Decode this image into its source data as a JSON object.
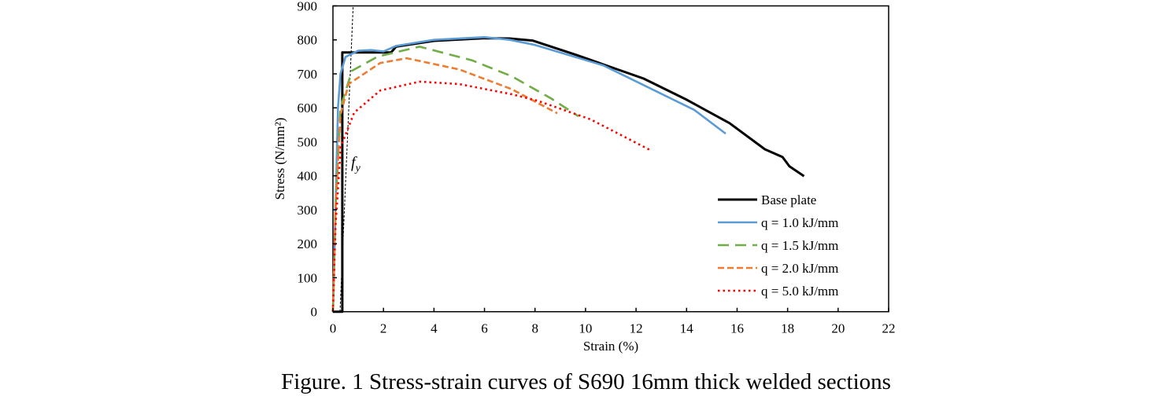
{
  "caption": "Figure. 1 Stress-strain curves of S690 16mm thick welded sections",
  "chart_data": {
    "type": "line",
    "title": "",
    "xlabel": "Strain (%)",
    "ylabel": "Stress (N/mm²)",
    "xlim": [
      0,
      22
    ],
    "ylim": [
      0,
      900
    ],
    "xticks": [
      0,
      2,
      4,
      6,
      8,
      10,
      12,
      14,
      16,
      18,
      20,
      22
    ],
    "yticks": [
      0,
      100,
      200,
      300,
      400,
      500,
      600,
      700,
      800,
      900
    ],
    "grid": false,
    "legend_position": "bottom-right",
    "annotation": {
      "label": "f",
      "subscript": "y",
      "x": 0.95,
      "y": 440
    },
    "reference_line": {
      "style": "dotted",
      "color": "#000000",
      "points": [
        [
          0.28,
          0
        ],
        [
          0.8,
          900
        ]
      ]
    },
    "series": [
      {
        "name": "Base plate",
        "color": "#000000",
        "style": "solid",
        "points": [
          [
            0,
            0
          ],
          [
            0.37,
            0
          ],
          [
            0.37,
            763
          ],
          [
            2.3,
            763
          ],
          [
            2.5,
            780
          ],
          [
            4,
            797
          ],
          [
            6,
            805
          ],
          [
            7,
            804
          ],
          [
            7.9,
            798
          ],
          [
            9.66,
            755
          ],
          [
            12.3,
            686
          ],
          [
            14.0,
            624
          ],
          [
            15.7,
            555
          ],
          [
            17.1,
            478
          ],
          [
            17.8,
            455
          ],
          [
            18.07,
            428
          ],
          [
            18.65,
            399
          ]
        ]
      },
      {
        "name": "q = 1.0 kJ/mm",
        "color": "#5B9BD5",
        "style": "solid",
        "points": [
          [
            0,
            0
          ],
          [
            0.1,
            300
          ],
          [
            0.2,
            600
          ],
          [
            0.3,
            700
          ],
          [
            0.5,
            750
          ],
          [
            1.0,
            768
          ],
          [
            1.5,
            770
          ],
          [
            2.0,
            766
          ],
          [
            2.5,
            782
          ],
          [
            4,
            800
          ],
          [
            6,
            808
          ],
          [
            7,
            800
          ],
          [
            8,
            785
          ],
          [
            10.7,
            725
          ],
          [
            14.3,
            594
          ],
          [
            15.55,
            524
          ]
        ]
      },
      {
        "name": "q = 1.5 kJ/mm",
        "color": "#70AD47",
        "style": "dashed",
        "points": [
          [
            0,
            0
          ],
          [
            0.1,
            300
          ],
          [
            0.3,
            600
          ],
          [
            0.75,
            709
          ],
          [
            1.78,
            751
          ],
          [
            3.43,
            780
          ],
          [
            5.5,
            740
          ],
          [
            7.07,
            693
          ],
          [
            8.63,
            628
          ],
          [
            9.72,
            575
          ]
        ]
      },
      {
        "name": "q = 2.0 kJ/mm",
        "color": "#ED7D31",
        "style": "dashed-short",
        "points": [
          [
            0,
            0
          ],
          [
            0.1,
            300
          ],
          [
            0.3,
            580
          ],
          [
            0.62,
            670
          ],
          [
            1.87,
            732
          ],
          [
            2.92,
            746
          ],
          [
            5.0,
            713
          ],
          [
            7.07,
            655
          ],
          [
            8.88,
            584
          ]
        ]
      },
      {
        "name": "q = 5.0 kJ/mm",
        "color": "#FF0000",
        "style": "dotted",
        "points": [
          [
            0,
            0
          ],
          [
            0.1,
            250
          ],
          [
            0.31,
            485
          ],
          [
            0.84,
            586
          ],
          [
            1.87,
            651
          ],
          [
            3.43,
            677
          ],
          [
            5.0,
            670
          ],
          [
            7.07,
            640
          ],
          [
            8.1,
            621
          ],
          [
            10.2,
            566
          ],
          [
            12.6,
            474
          ]
        ]
      }
    ]
  }
}
